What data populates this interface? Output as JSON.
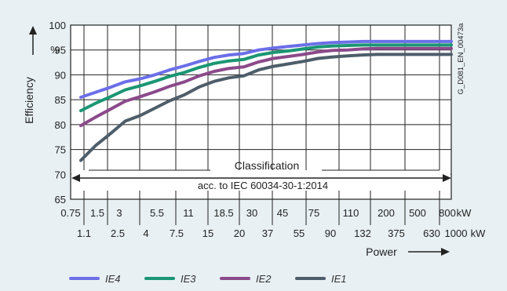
{
  "chart_data": {
    "type": "line",
    "ylabel": "Efficiency",
    "y_unit_label": "%",
    "ylim": [
      65,
      100
    ],
    "y_ticks": [
      "100",
      "95",
      "90",
      "85",
      "80",
      "75",
      "70",
      "65"
    ],
    "xlabel": "Power",
    "x_unit": "kW",
    "x_row1": [
      "0.75",
      "1.5",
      "3",
      "5.5",
      "11",
      "18.5",
      "30",
      "45",
      "75",
      "110",
      "200",
      "500",
      "800"
    ],
    "x_row2": [
      "1.1",
      "2.5",
      "4",
      "7.5",
      "15",
      "20",
      "37",
      "55",
      "90",
      "132",
      "375",
      "630",
      "1000"
    ],
    "x": [
      0.75,
      1.1,
      1.5,
      2.5,
      3,
      4,
      5.5,
      7.5,
      11,
      15,
      18.5,
      20,
      30,
      37,
      45,
      55,
      75,
      90,
      110,
      132,
      200,
      375,
      500,
      630,
      800,
      1000
    ],
    "series": [
      {
        "name": "IE4",
        "color": "#6b6fe8",
        "values": [
          85.5,
          86.5,
          87.5,
          88.6,
          89.2,
          90.0,
          91.0,
          91.8,
          92.7,
          93.5,
          94.0,
          94.3,
          95.0,
          95.4,
          95.7,
          96.0,
          96.3,
          96.5,
          96.6,
          96.7,
          96.7,
          96.7,
          96.7,
          96.7,
          96.7,
          96.7
        ]
      },
      {
        "name": "IE3",
        "color": "#1a9673",
        "values": [
          82.8,
          84.3,
          85.6,
          87.0,
          87.8,
          88.7,
          89.7,
          90.5,
          91.5,
          92.3,
          92.8,
          93.1,
          94.0,
          94.5,
          94.8,
          95.2,
          95.6,
          95.8,
          95.9,
          96.0,
          96.0,
          96.0,
          96.0,
          96.0,
          96.0,
          96.0
        ]
      },
      {
        "name": "IE2",
        "color": "#8b4a8b",
        "values": [
          79.8,
          81.5,
          83.1,
          84.7,
          85.6,
          86.6,
          87.7,
          88.6,
          89.8,
          90.7,
          91.3,
          91.6,
          92.6,
          93.3,
          93.7,
          94.1,
          94.6,
          94.9,
          95.0,
          95.2,
          95.3,
          95.3,
          95.3,
          95.3,
          95.3,
          95.3
        ]
      },
      {
        "name": "IE1",
        "color": "#4d5d6a",
        "values": [
          72.8,
          75.8,
          78.2,
          80.7,
          81.8,
          83.3,
          84.8,
          86.0,
          87.6,
          88.7,
          89.4,
          89.8,
          91.0,
          91.7,
          92.2,
          92.7,
          93.3,
          93.6,
          93.8,
          94.0,
          94.1,
          94.1,
          94.1,
          94.1,
          94.1,
          94.1
        ]
      }
    ],
    "annotations": {
      "classification": "Classification",
      "standard": "acc. to IEC 60034-30-1:2014",
      "figure_id": "G_D081_EN_00473a"
    },
    "grid": true,
    "legend_position": "bottom"
  }
}
